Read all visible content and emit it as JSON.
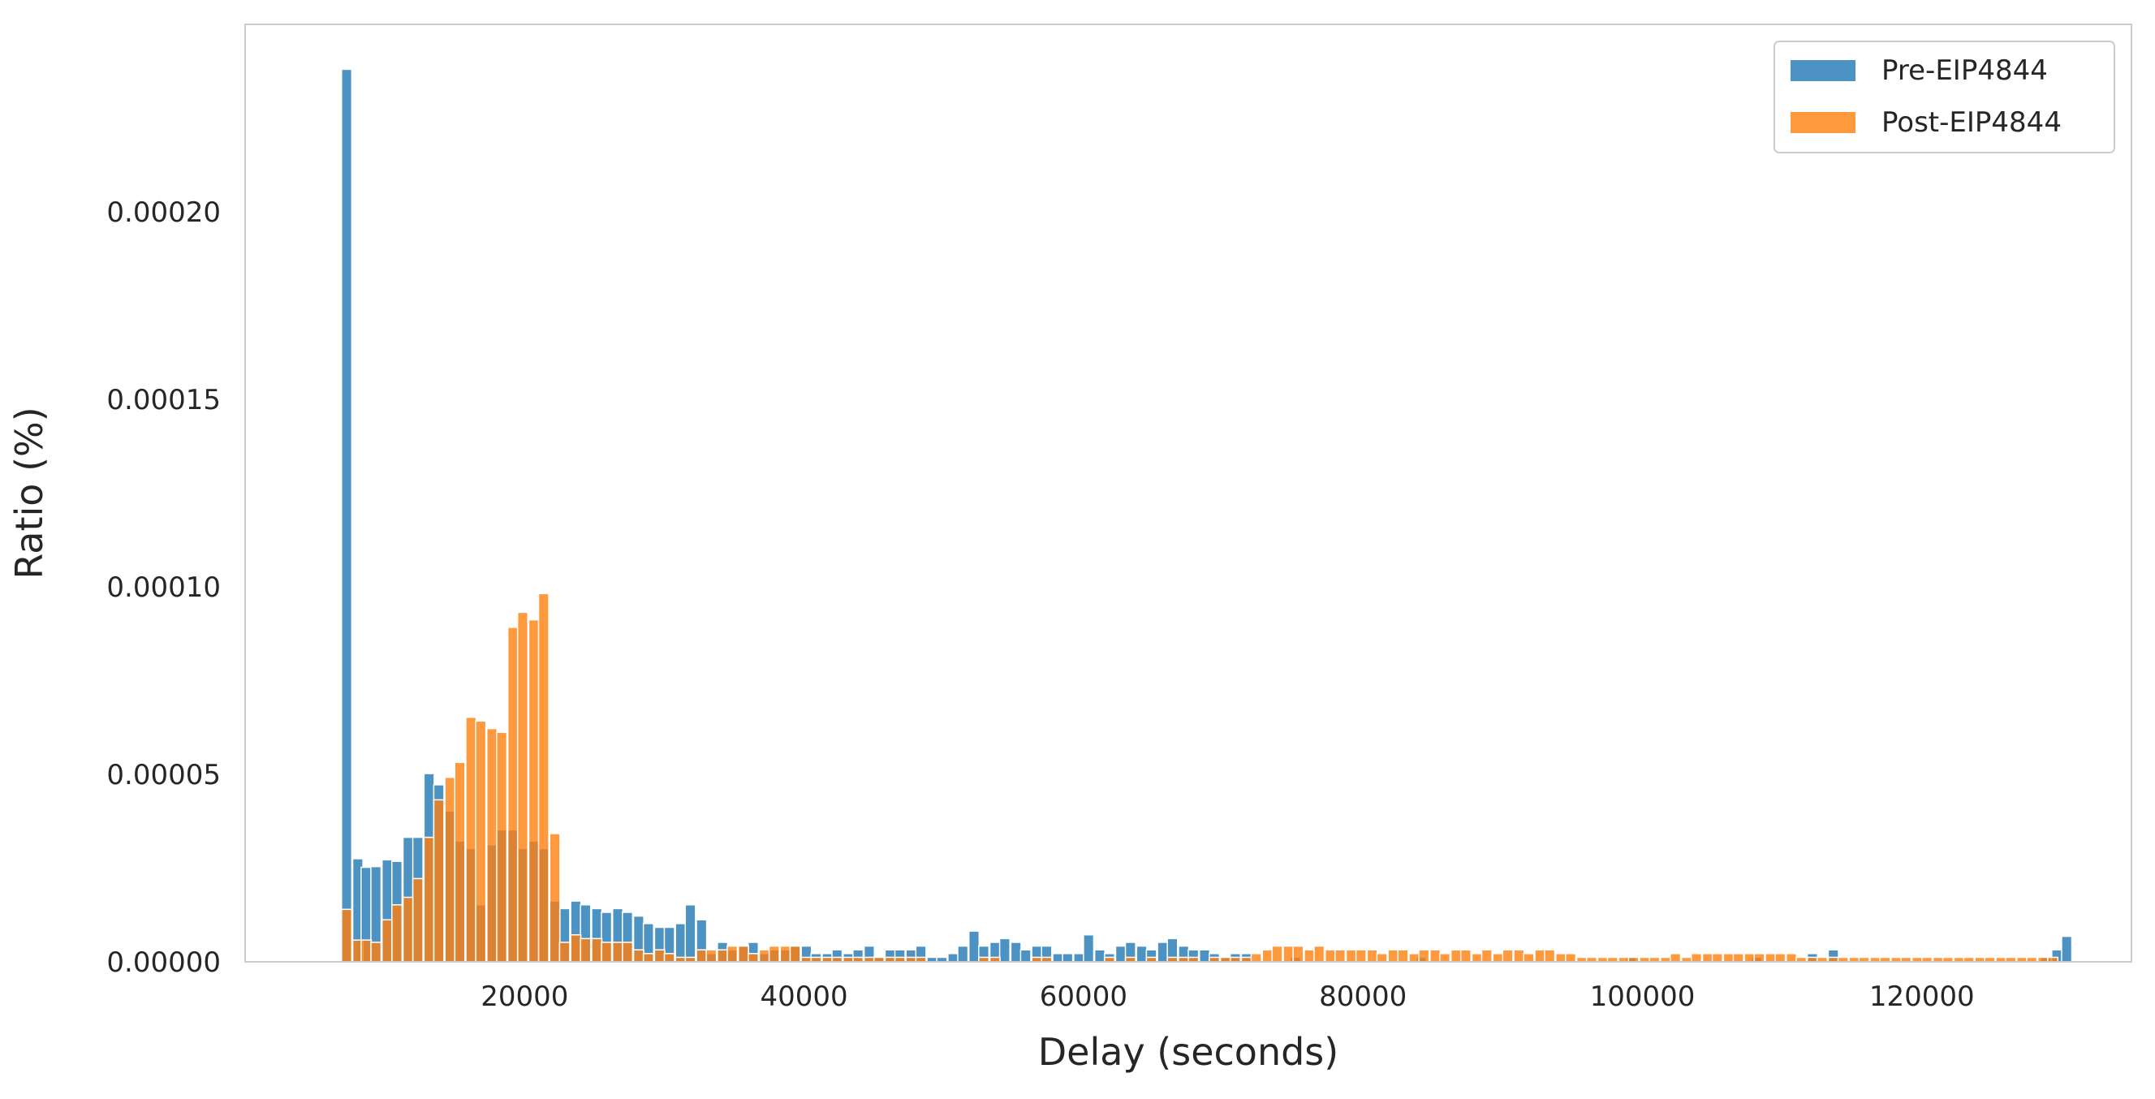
{
  "chart_data": {
    "type": "bar",
    "title": "",
    "xlabel": "Delay (seconds)",
    "ylabel": "Ratio (%)",
    "xlim": [
      0,
      135000
    ],
    "ylim": [
      0,
      0.00025
    ],
    "grid": false,
    "legend": "top-right",
    "bin_width": 730,
    "x_ticks": [
      20000,
      40000,
      60000,
      80000,
      100000,
      120000
    ],
    "x_tick_labels": [
      "20000",
      "40000",
      "60000",
      "80000",
      "100000",
      "120000"
    ],
    "y_ticks": [
      0,
      5e-05,
      0.0001,
      0.00015,
      0.0002
    ],
    "y_tick_labels": [
      "0.00000",
      "0.00005",
      "0.00010",
      "0.00015",
      "0.00020"
    ],
    "series": [
      {
        "name": "Pre-EIP4844",
        "color": "#1f77b4",
        "bins": [
          [
            6900,
            0.000238
          ],
          [
            7700,
            2.75e-05
          ],
          [
            8300,
            2.52e-05
          ],
          [
            9000,
            2.54e-05
          ],
          [
            9800,
            2.72e-05
          ],
          [
            10500,
            2.68e-05
          ],
          [
            11300,
            3.32e-05
          ],
          [
            12000,
            3.32e-05
          ],
          [
            12800,
            5.02e-05
          ],
          [
            13500,
            4.72e-05
          ],
          [
            14300,
            4.02e-05
          ],
          [
            15000,
            3.22e-05
          ],
          [
            15800,
            3.02e-05
          ],
          [
            16500,
            1.52e-05
          ],
          [
            17300,
            3.12e-05
          ],
          [
            18000,
            3.52e-05
          ],
          [
            18800,
            3.52e-05
          ],
          [
            19500,
            3.02e-05
          ],
          [
            20300,
            3.22e-05
          ],
          [
            21000,
            3.02e-05
          ],
          [
            21800,
            1.62e-05
          ],
          [
            22500,
            1.42e-05
          ],
          [
            23300,
            1.62e-05
          ],
          [
            24000,
            1.52e-05
          ],
          [
            24800,
            1.42e-05
          ],
          [
            25500,
            1.32e-05
          ],
          [
            26300,
            1.42e-05
          ],
          [
            27000,
            1.32e-05
          ],
          [
            27800,
            1.22e-05
          ],
          [
            28500,
            1.02e-05
          ],
          [
            29300,
            9.2e-06
          ],
          [
            30000,
            9.2e-06
          ],
          [
            30800,
            1.02e-05
          ],
          [
            31500,
            1.52e-05
          ],
          [
            32300,
            1.12e-05
          ],
          [
            33000,
            2.2e-06
          ],
          [
            33800,
            5.2e-06
          ],
          [
            34500,
            3.2e-06
          ],
          [
            35300,
            4.2e-06
          ],
          [
            36000,
            5.2e-06
          ],
          [
            36800,
            2.2e-06
          ],
          [
            37500,
            3.2e-06
          ],
          [
            38300,
            3.2e-06
          ],
          [
            39000,
            4.2e-06
          ],
          [
            39800,
            4.2e-06
          ],
          [
            40500,
            2.2e-06
          ],
          [
            41300,
            2.2e-06
          ],
          [
            42000,
            3.2e-06
          ],
          [
            42800,
            2.2e-06
          ],
          [
            43500,
            3.2e-06
          ],
          [
            44300,
            4.2e-06
          ],
          [
            45000,
            1.2e-06
          ],
          [
            45800,
            3.2e-06
          ],
          [
            46500,
            3.2e-06
          ],
          [
            47300,
            3.2e-06
          ],
          [
            48000,
            4.2e-06
          ],
          [
            48800,
            1.2e-06
          ],
          [
            49500,
            1.2e-06
          ],
          [
            50300,
            2.2e-06
          ],
          [
            51000,
            4.2e-06
          ],
          [
            51800,
            8.2e-06
          ],
          [
            52500,
            4.2e-06
          ],
          [
            53300,
            5.2e-06
          ],
          [
            54000,
            6.2e-06
          ],
          [
            54800,
            5.2e-06
          ],
          [
            55500,
            3.2e-06
          ],
          [
            56300,
            4.2e-06
          ],
          [
            57000,
            4.2e-06
          ],
          [
            57800,
            2.2e-06
          ],
          [
            58500,
            2.2e-06
          ],
          [
            59300,
            2.2e-06
          ],
          [
            60000,
            7.2e-06
          ],
          [
            60800,
            3.2e-06
          ],
          [
            61500,
            2.2e-06
          ],
          [
            62300,
            4.2e-06
          ],
          [
            63000,
            5.2e-06
          ],
          [
            63800,
            4.2e-06
          ],
          [
            64500,
            3.2e-06
          ],
          [
            65300,
            5.2e-06
          ],
          [
            66000,
            6.2e-06
          ],
          [
            66800,
            4.2e-06
          ],
          [
            67500,
            3.2e-06
          ],
          [
            68300,
            3.2e-06
          ],
          [
            69000,
            2.2e-06
          ],
          [
            69800,
            1.2e-06
          ],
          [
            70500,
            2.2e-06
          ],
          [
            71300,
            2.2e-06
          ],
          [
            74800,
            1.2e-06
          ],
          [
            83800,
            1.2e-06
          ],
          [
            98800,
            1.2e-06
          ],
          [
            107800,
            1.2e-06
          ],
          [
            111800,
            2.2e-06
          ],
          [
            113300,
            3.2e-06
          ],
          [
            128500,
            1.2e-06
          ],
          [
            129300,
            3.2e-06
          ],
          [
            130000,
            6.8e-06
          ]
        ]
      },
      {
        "name": "Post-EIP4844",
        "color": "#ff7f0e",
        "bins": [
          [
            6900,
            1.4e-05
          ],
          [
            7700,
            5.8e-06
          ],
          [
            8300,
            5.8e-06
          ],
          [
            9000,
            5.2e-06
          ],
          [
            9800,
            1.12e-05
          ],
          [
            10500,
            1.52e-05
          ],
          [
            11300,
            1.72e-05
          ],
          [
            12000,
            2.22e-05
          ],
          [
            12800,
            3.32e-05
          ],
          [
            13500,
            4.32e-05
          ],
          [
            14300,
            4.92e-05
          ],
          [
            15000,
            5.32e-05
          ],
          [
            15800,
            6.52e-05
          ],
          [
            16500,
            6.42e-05
          ],
          [
            17300,
            6.22e-05
          ],
          [
            18000,
            6.12e-05
          ],
          [
            18800,
            8.92e-05
          ],
          [
            19500,
            9.32e-05
          ],
          [
            20300,
            9.12e-05
          ],
          [
            21000,
            9.82e-05
          ],
          [
            21800,
            3.42e-05
          ],
          [
            22500,
            5.2e-06
          ],
          [
            23300,
            7.2e-06
          ],
          [
            24000,
            6.2e-06
          ],
          [
            24800,
            6.2e-06
          ],
          [
            25500,
            5.2e-06
          ],
          [
            26300,
            5.2e-06
          ],
          [
            27000,
            5.2e-06
          ],
          [
            27800,
            3.2e-06
          ],
          [
            28500,
            2.2e-06
          ],
          [
            29300,
            3.2e-06
          ],
          [
            30000,
            2.2e-06
          ],
          [
            30800,
            1.2e-06
          ],
          [
            31500,
            1.2e-06
          ],
          [
            32300,
            3.2e-06
          ],
          [
            33000,
            3.2e-06
          ],
          [
            33800,
            3.2e-06
          ],
          [
            34500,
            4.2e-06
          ],
          [
            35300,
            4.2e-06
          ],
          [
            36000,
            2.2e-06
          ],
          [
            36800,
            3.2e-06
          ],
          [
            37500,
            4.2e-06
          ],
          [
            38300,
            4.2e-06
          ],
          [
            39000,
            4.2e-06
          ],
          [
            39800,
            1.2e-06
          ],
          [
            40500,
            1.2e-06
          ],
          [
            41300,
            1.2e-06
          ],
          [
            42000,
            1.2e-06
          ],
          [
            42800,
            1.2e-06
          ],
          [
            43500,
            1.2e-06
          ],
          [
            44300,
            1.2e-06
          ],
          [
            45000,
            1.2e-06
          ],
          [
            45800,
            1.2e-06
          ],
          [
            46500,
            1.2e-06
          ],
          [
            47300,
            1.2e-06
          ],
          [
            48000,
            1.2e-06
          ],
          [
            52500,
            1.2e-06
          ],
          [
            53300,
            1.2e-06
          ],
          [
            56300,
            1.2e-06
          ],
          [
            57000,
            1.2e-06
          ],
          [
            61500,
            1.2e-06
          ],
          [
            63000,
            1.2e-06
          ],
          [
            64500,
            1.2e-06
          ],
          [
            66000,
            1.2e-06
          ],
          [
            66800,
            1.2e-06
          ],
          [
            67500,
            1.2e-06
          ],
          [
            69000,
            1.2e-06
          ],
          [
            69800,
            1.2e-06
          ],
          [
            70500,
            1.2e-06
          ],
          [
            71300,
            1.2e-06
          ],
          [
            72000,
            2.2e-06
          ],
          [
            72800,
            3.2e-06
          ],
          [
            73500,
            4.2e-06
          ],
          [
            74300,
            4.2e-06
          ],
          [
            75000,
            4.2e-06
          ],
          [
            75800,
            3.2e-06
          ],
          [
            76500,
            4.2e-06
          ],
          [
            77300,
            3.2e-06
          ],
          [
            78000,
            3.2e-06
          ],
          [
            78800,
            3.2e-06
          ],
          [
            79500,
            3.2e-06
          ],
          [
            80300,
            3.2e-06
          ],
          [
            81000,
            2.2e-06
          ],
          [
            81800,
            3.2e-06
          ],
          [
            82500,
            3.2e-06
          ],
          [
            83300,
            2.2e-06
          ],
          [
            84000,
            3.2e-06
          ],
          [
            84800,
            3.2e-06
          ],
          [
            85500,
            2.2e-06
          ],
          [
            86300,
            3.2e-06
          ],
          [
            87000,
            3.2e-06
          ],
          [
            87800,
            2.2e-06
          ],
          [
            88500,
            3.2e-06
          ],
          [
            89300,
            2.2e-06
          ],
          [
            90000,
            3.2e-06
          ],
          [
            90800,
            3.2e-06
          ],
          [
            91500,
            2.2e-06
          ],
          [
            92300,
            3.2e-06
          ],
          [
            93000,
            3.2e-06
          ],
          [
            93800,
            2.2e-06
          ],
          [
            94500,
            2.2e-06
          ],
          [
            95300,
            1.2e-06
          ],
          [
            96000,
            1.2e-06
          ],
          [
            96800,
            1.2e-06
          ],
          [
            97500,
            1.2e-06
          ],
          [
            98300,
            1.2e-06
          ],
          [
            99000,
            1.2e-06
          ],
          [
            99800,
            1.2e-06
          ],
          [
            100500,
            1.2e-06
          ],
          [
            101300,
            1.2e-06
          ],
          [
            102000,
            2.2e-06
          ],
          [
            102800,
            1.2e-06
          ],
          [
            103500,
            2.2e-06
          ],
          [
            104300,
            2.2e-06
          ],
          [
            105000,
            2.2e-06
          ],
          [
            105800,
            2.2e-06
          ],
          [
            106500,
            2.2e-06
          ],
          [
            107300,
            2.2e-06
          ],
          [
            108000,
            2.2e-06
          ],
          [
            108800,
            2.2e-06
          ],
          [
            109500,
            2.2e-06
          ],
          [
            110300,
            2.2e-06
          ],
          [
            111000,
            1.2e-06
          ],
          [
            111800,
            1.2e-06
          ],
          [
            112500,
            1.2e-06
          ],
          [
            113300,
            1.2e-06
          ],
          [
            114000,
            1.2e-06
          ],
          [
            114800,
            1.2e-06
          ],
          [
            115500,
            1.2e-06
          ],
          [
            116300,
            1.2e-06
          ],
          [
            117000,
            1.2e-06
          ],
          [
            117800,
            1.2e-06
          ],
          [
            118500,
            1.2e-06
          ],
          [
            119300,
            1.2e-06
          ],
          [
            120000,
            1.2e-06
          ],
          [
            120800,
            1.2e-06
          ],
          [
            121500,
            1.2e-06
          ],
          [
            122300,
            1.2e-06
          ],
          [
            123000,
            1.2e-06
          ],
          [
            123800,
            1.2e-06
          ],
          [
            124500,
            1.2e-06
          ],
          [
            125300,
            1.2e-06
          ],
          [
            126000,
            1.2e-06
          ],
          [
            126800,
            1.2e-06
          ],
          [
            127500,
            1.2e-06
          ],
          [
            128300,
            1.2e-06
          ],
          [
            129000,
            1.2e-06
          ]
        ]
      }
    ]
  }
}
